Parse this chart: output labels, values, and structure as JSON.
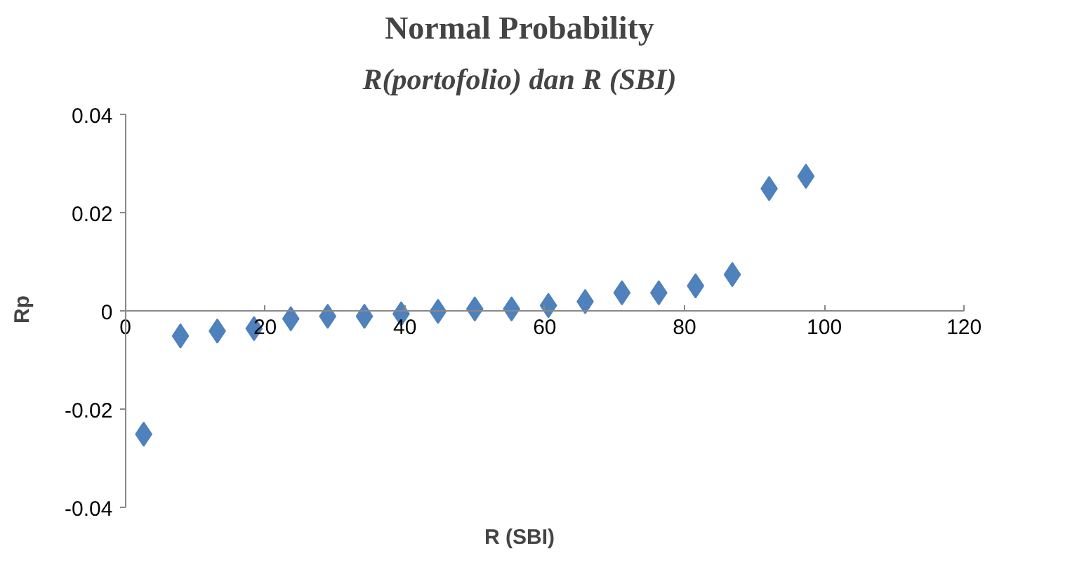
{
  "chart_data": {
    "type": "scatter",
    "title": "Normal Probability",
    "subtitle": "R(portofolio) dan R (SBI)",
    "xlabel": "R (SBI)",
    "ylabel": "Rp",
    "x": [
      2.63,
      7.89,
      13.16,
      18.42,
      23.68,
      28.95,
      34.21,
      39.47,
      44.74,
      50,
      55.26,
      60.53,
      65.79,
      71.05,
      76.32,
      81.58,
      86.84,
      92.11,
      97.37
    ],
    "series": [
      {
        "color": "#4f81bd",
        "values": [
          -0.025,
          -0.005,
          -0.004,
          -0.0035,
          -0.0015,
          -0.001,
          -0.001,
          -0.0005,
          0,
          0.0005,
          0.0005,
          0.0012,
          0.002,
          0.0038,
          0.0038,
          0.0052,
          0.0075,
          0.025,
          0.0275
        ]
      }
    ],
    "xlim": [
      0,
      120
    ],
    "xticks": [
      0,
      20,
      40,
      60,
      80,
      100,
      120
    ],
    "ylim": [
      -0.04,
      0.04
    ],
    "yticks": [
      -0.04,
      -0.02,
      0,
      0.02,
      0.04
    ],
    "marker": "diamond",
    "grid": false
  }
}
